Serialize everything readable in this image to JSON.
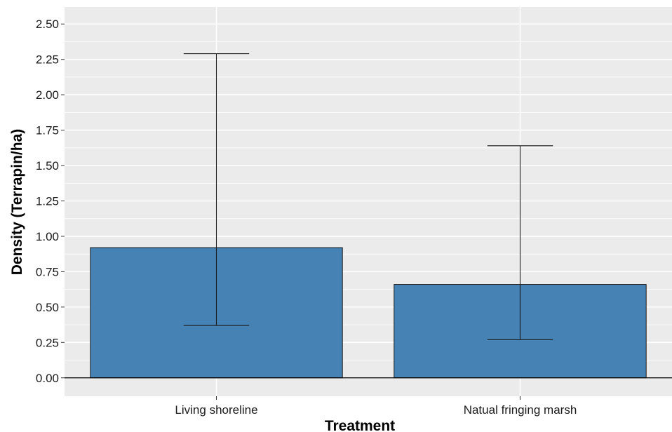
{
  "chart_data": {
    "type": "bar",
    "title": "",
    "xlabel": "Treatment",
    "ylabel": "Density (Terrapin/ha)",
    "categories": [
      "Living shoreline",
      "Natual fringing marsh"
    ],
    "values": [
      0.92,
      0.66
    ],
    "error_low": [
      0.37,
      0.27
    ],
    "error_high": [
      2.29,
      1.64
    ],
    "ylim": [
      -0.13,
      2.62
    ],
    "yticks": [
      0.0,
      0.25,
      0.5,
      0.75,
      1.0,
      1.25,
      1.5,
      1.75,
      2.0,
      2.25,
      2.5
    ],
    "ytick_labels": [
      "0.00",
      "0.25",
      "0.50",
      "0.75",
      "1.00",
      "1.25",
      "1.50",
      "1.75",
      "2.00",
      "2.25",
      "2.50"
    ],
    "grid": true,
    "legend": "none",
    "colors": {
      "bar_fill": "#4682b4",
      "bar_stroke": "#1a1a1a",
      "panel_bg": "#ebebeb",
      "grid": "#ffffff",
      "error_bar": "#1a1a1a"
    }
  }
}
